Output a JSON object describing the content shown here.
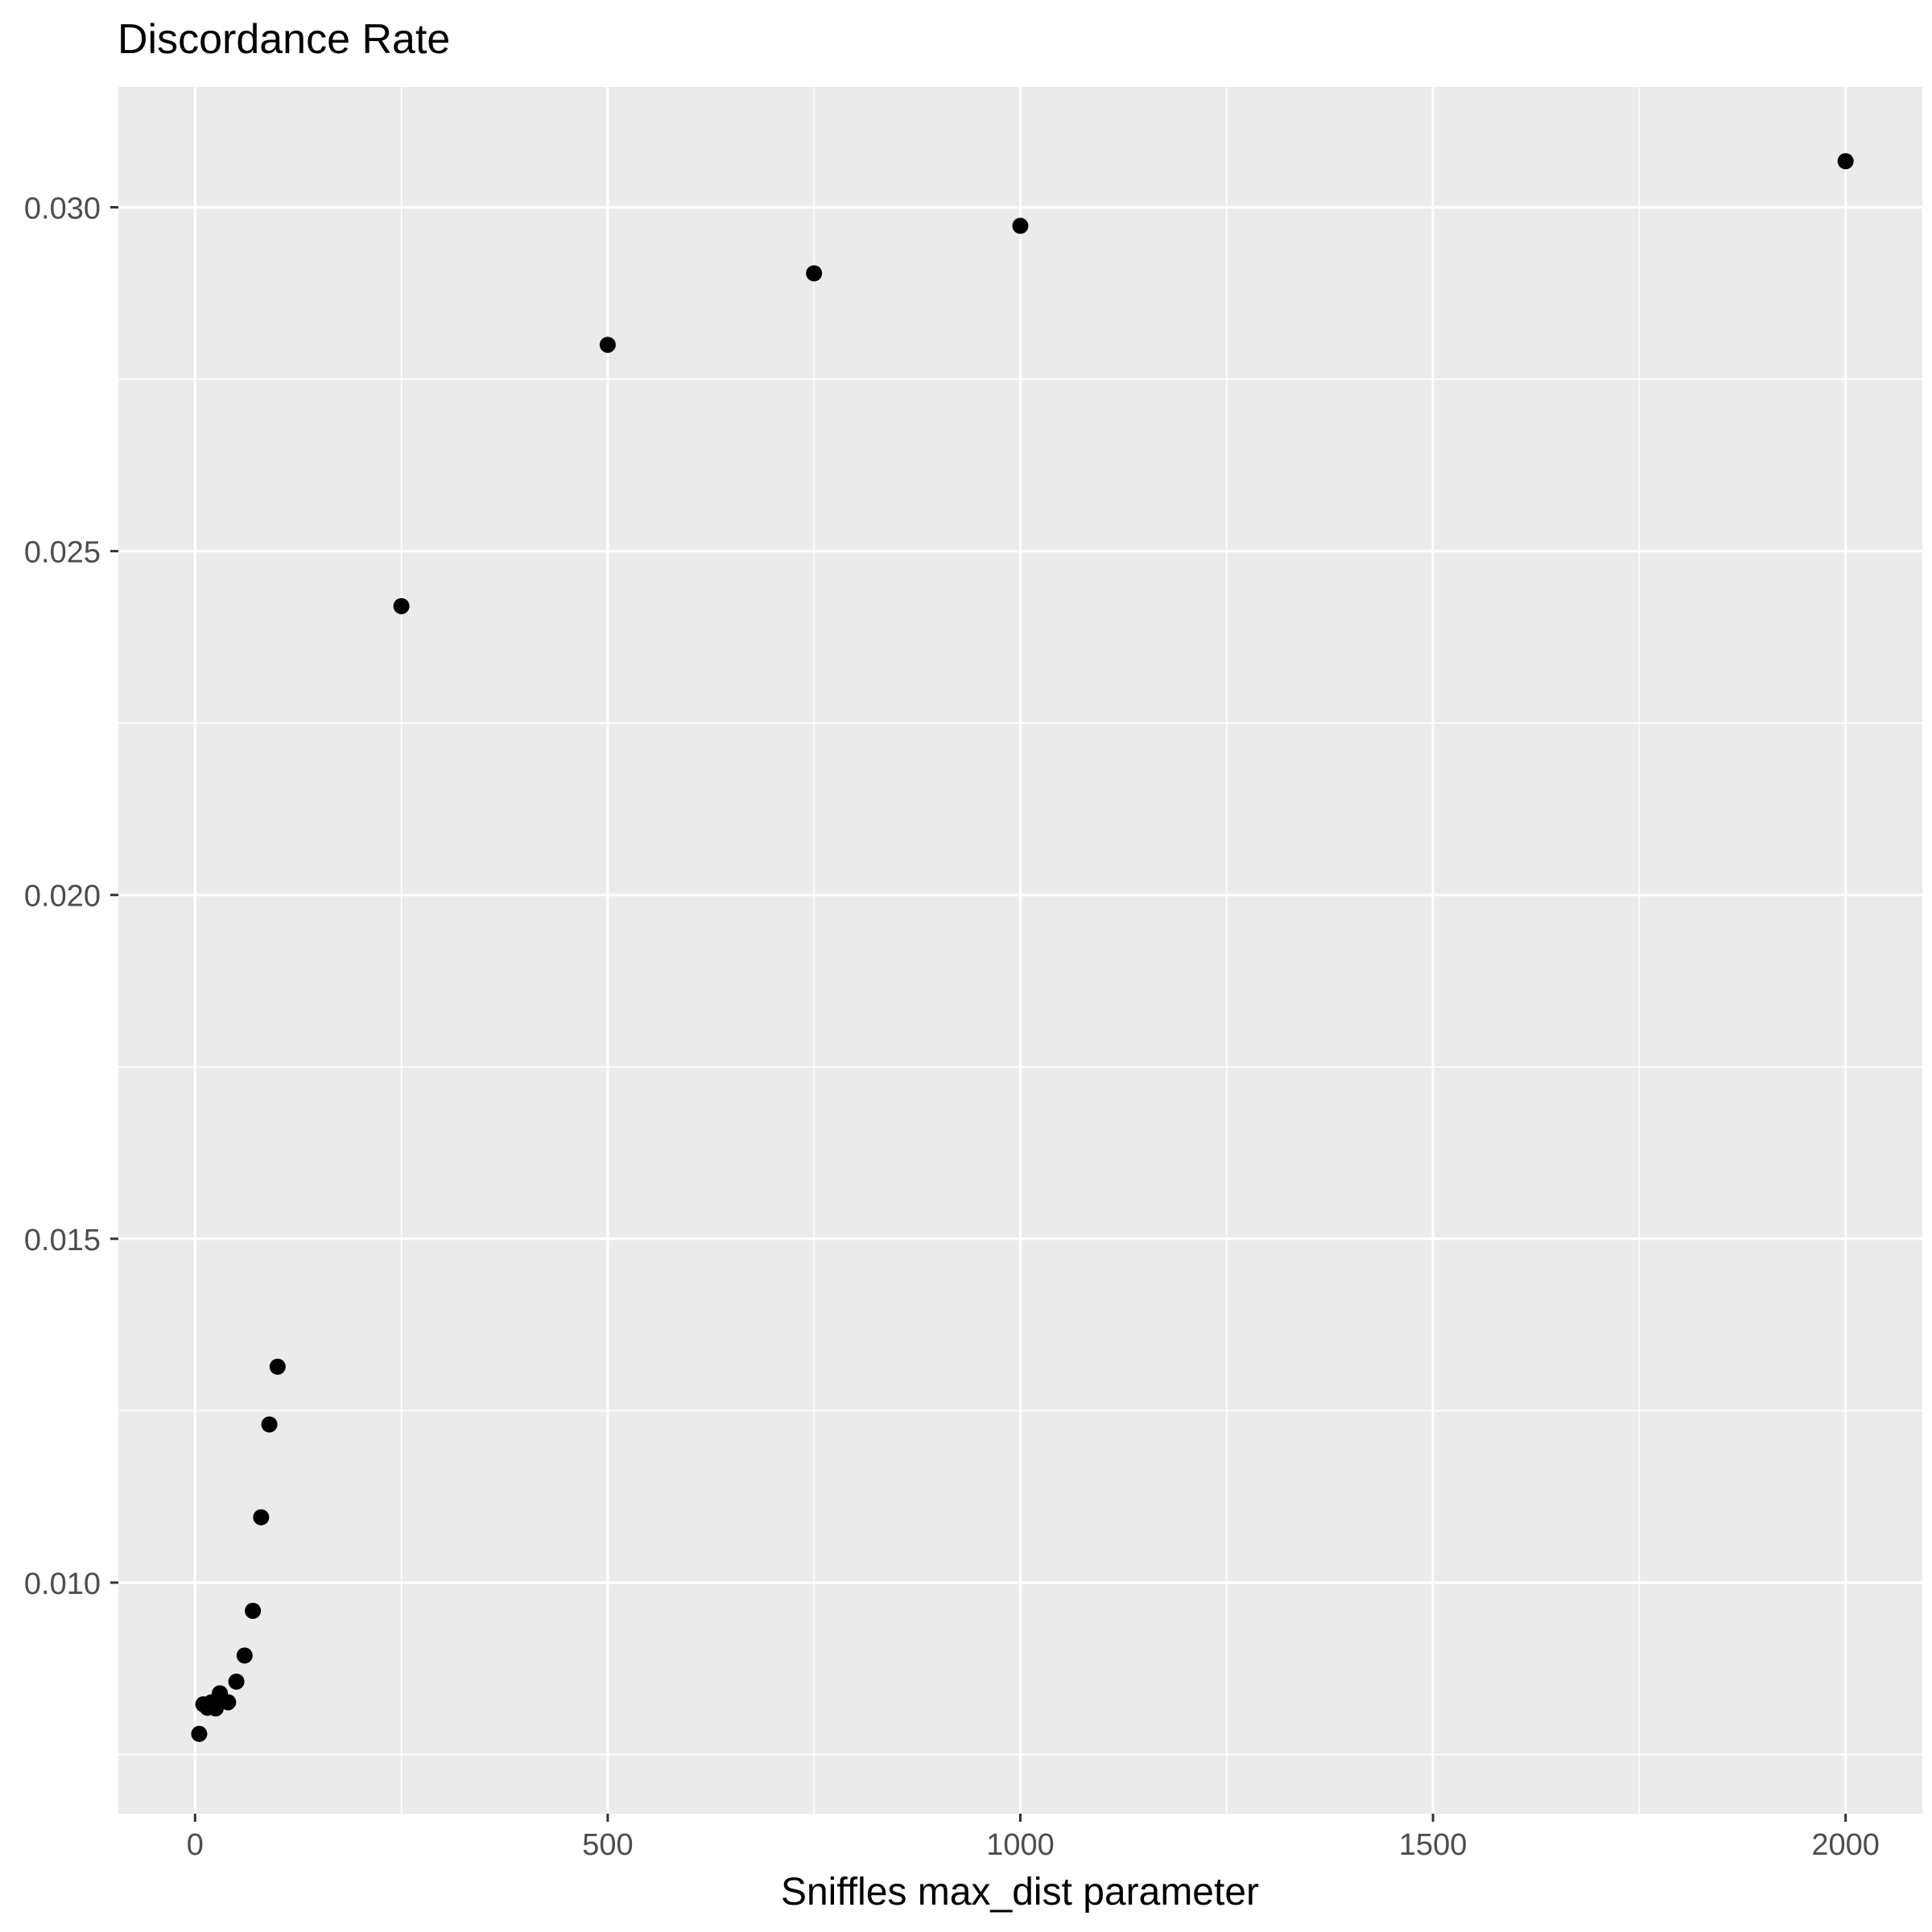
{
  "chart_data": {
    "type": "scatter",
    "title": "Discordance Rate",
    "xlabel": "Sniffles max_dist parameter",
    "ylabel": "",
    "xlim": [
      -93,
      2093
    ],
    "ylim": [
      0.00664,
      0.03175
    ],
    "xticks": [
      0,
      500,
      1000,
      1500,
      2000
    ],
    "xtick_labels": [
      "0",
      "500",
      "1000",
      "1500",
      "2000"
    ],
    "yticks": [
      0.01,
      0.015,
      0.02,
      0.025,
      0.03
    ],
    "ytick_labels": [
      "0.010",
      "0.015",
      "0.020",
      "0.025",
      "0.030"
    ],
    "grid": true,
    "legend": "none",
    "colors": {
      "panel": "#ebebeb",
      "grid": "#ffffff",
      "point": "#000000",
      "tick": "#4d4d4d"
    },
    "points": [
      {
        "x": 5,
        "y": 0.0078
      },
      {
        "x": 10,
        "y": 0.00823
      },
      {
        "x": 15,
        "y": 0.00818
      },
      {
        "x": 20,
        "y": 0.00826
      },
      {
        "x": 25,
        "y": 0.00817
      },
      {
        "x": 30,
        "y": 0.00839
      },
      {
        "x": 40,
        "y": 0.00826
      },
      {
        "x": 50,
        "y": 0.00856
      },
      {
        "x": 60,
        "y": 0.00894
      },
      {
        "x": 70,
        "y": 0.00959
      },
      {
        "x": 80,
        "y": 0.01095
      },
      {
        "x": 90,
        "y": 0.0123
      },
      {
        "x": 100,
        "y": 0.01314
      },
      {
        "x": 250,
        "y": 0.0242
      },
      {
        "x": 500,
        "y": 0.028
      },
      {
        "x": 750,
        "y": 0.02904
      },
      {
        "x": 1000,
        "y": 0.02973
      },
      {
        "x": 2000,
        "y": 0.03067
      }
    ]
  }
}
